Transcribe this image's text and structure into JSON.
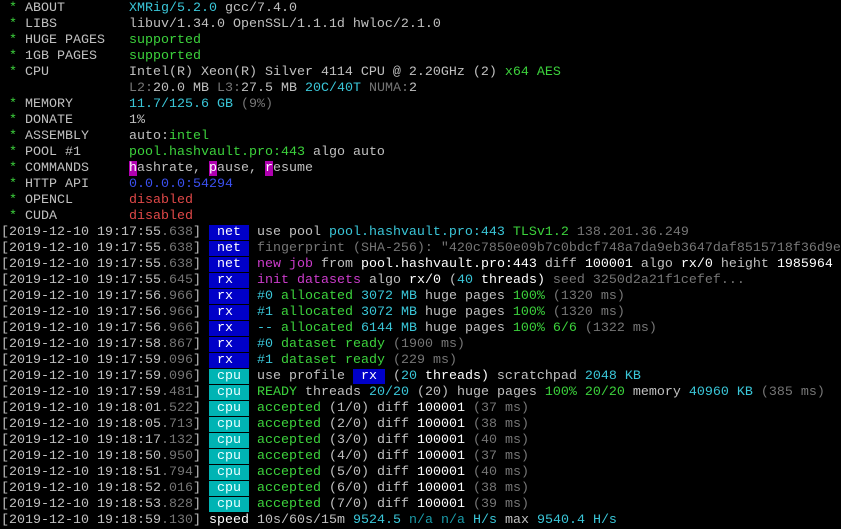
{
  "colors": {
    "white": "#c0c0c0",
    "bright": "#ffffff",
    "dim": "#767676",
    "green": "#3cd23c",
    "cyan": "#3ac6d8",
    "magenta": "#cc3ccc",
    "red": "#e04848",
    "blue": "#3b50f0",
    "tag_net_rx_bg": "#0000c8",
    "tag_cpu_bg": "#00b4b4"
  },
  "lines": [
    [
      [
        " * ",
        "g"
      ],
      [
        "ABOUT        ",
        "w"
      ],
      [
        "XMRig/5.2.0",
        "c"
      ],
      [
        " gcc/7.4.0",
        "w"
      ]
    ],
    [
      [
        " * ",
        "g"
      ],
      [
        "LIBS         ",
        "w"
      ],
      [
        "libuv/1.34.0 OpenSSL/1.1.1d hwloc/2.1.0",
        "w"
      ]
    ],
    [
      [
        " * ",
        "g"
      ],
      [
        "HUGE PAGES   ",
        "w"
      ],
      [
        "supported",
        "g"
      ]
    ],
    [
      [
        " * ",
        "g"
      ],
      [
        "1GB PAGES    ",
        "w"
      ],
      [
        "supported",
        "g"
      ]
    ],
    [
      [
        " * ",
        "g"
      ],
      [
        "CPU          ",
        "w"
      ],
      [
        "Intel(R) Xeon(R) Silver 4114 CPU @ 2.20GHz (2)",
        "w"
      ],
      [
        " x64 AES",
        "g"
      ]
    ],
    [
      [
        "                ",
        "w"
      ],
      [
        "L2:",
        "d"
      ],
      [
        "20.0 MB",
        "w"
      ],
      [
        " L3:",
        "d"
      ],
      [
        "27.5 MB",
        "w"
      ],
      [
        " 20C/40T",
        "c"
      ],
      [
        " NUMA:",
        "d"
      ],
      [
        "2",
        "w"
      ]
    ],
    [
      [
        " * ",
        "g"
      ],
      [
        "MEMORY       ",
        "w"
      ],
      [
        "11.7/125.6 GB",
        "c"
      ],
      [
        " (9%)",
        "d"
      ]
    ],
    [
      [
        " * ",
        "g"
      ],
      [
        "DONATE       ",
        "w"
      ],
      [
        "1%",
        "w"
      ]
    ],
    [
      [
        " * ",
        "g"
      ],
      [
        "ASSEMBLY     ",
        "w"
      ],
      [
        "auto:",
        "w"
      ],
      [
        "intel",
        "g"
      ]
    ],
    [
      [
        " * ",
        "g"
      ],
      [
        "POOL #1      ",
        "w"
      ],
      [
        "pool.hashvault.pro:443",
        "g"
      ],
      [
        " algo auto",
        "w"
      ]
    ],
    [
      [
        " * ",
        "g"
      ],
      [
        "COMMANDS     ",
        "w"
      ],
      [
        "h",
        "mb"
      ],
      [
        "ashrate, ",
        "w"
      ],
      [
        "p",
        "mb"
      ],
      [
        "ause, ",
        "w"
      ],
      [
        "r",
        "mb"
      ],
      [
        "esume",
        "w"
      ]
    ],
    [
      [
        " * ",
        "g"
      ],
      [
        "HTTP API     ",
        "w"
      ],
      [
        "0.0.0.0:54294",
        "bl"
      ]
    ],
    [
      [
        " * ",
        "g"
      ],
      [
        "OPENCL       ",
        "w"
      ],
      [
        "disabled",
        "r"
      ]
    ],
    [
      [
        " * ",
        "g"
      ],
      [
        "CUDA         ",
        "w"
      ],
      [
        "disabled",
        "r"
      ]
    ],
    [
      [
        "[2019-12-10 19:17:55",
        "w"
      ],
      [
        ".638",
        "d"
      ],
      [
        "] ",
        "w"
      ],
      [
        " net ",
        "tb"
      ],
      [
        " use pool ",
        "w"
      ],
      [
        "pool.hashvault.pro:443",
        "c"
      ],
      [
        " TLSv1.2",
        "g"
      ],
      [
        " 138.201.36.249",
        "d"
      ]
    ],
    [
      [
        "[2019-12-10 19:17:55",
        "w"
      ],
      [
        ".638",
        "d"
      ],
      [
        "] ",
        "w"
      ],
      [
        " net ",
        "tb"
      ],
      [
        " fingerprint (SHA-256): \"420c7850e09b7c0bdcf748a7da9eb3647daf8515718f36d9e",
        "d"
      ]
    ],
    [
      [
        "[2019-12-10 19:17:55",
        "w"
      ],
      [
        ".638",
        "d"
      ],
      [
        "] ",
        "w"
      ],
      [
        " net ",
        "tb"
      ],
      [
        " ",
        "w"
      ],
      [
        "new job",
        "m"
      ],
      [
        " from ",
        "w"
      ],
      [
        "pool.hashvault.pro:443",
        "b"
      ],
      [
        " diff ",
        "w"
      ],
      [
        "100001",
        "b"
      ],
      [
        " algo ",
        "w"
      ],
      [
        "rx/0",
        "b"
      ],
      [
        " height ",
        "w"
      ],
      [
        "1985964",
        "b"
      ]
    ],
    [
      [
        "[2019-12-10 19:17:55",
        "w"
      ],
      [
        ".645",
        "d"
      ],
      [
        "] ",
        "w"
      ],
      [
        " rx  ",
        "tb"
      ],
      [
        " ",
        "w"
      ],
      [
        "init datasets",
        "m"
      ],
      [
        " algo ",
        "w"
      ],
      [
        "rx/0",
        "b"
      ],
      [
        " (",
        "w"
      ],
      [
        "40",
        "c"
      ],
      [
        " threads)",
        "b"
      ],
      [
        " seed 3250d2a21f1cefef...",
        "d"
      ]
    ],
    [
      [
        "[2019-12-10 19:17:56",
        "w"
      ],
      [
        ".966",
        "d"
      ],
      [
        "] ",
        "w"
      ],
      [
        " rx  ",
        "tb"
      ],
      [
        " ",
        "w"
      ],
      [
        "#0",
        "c"
      ],
      [
        " allocated",
        "g"
      ],
      [
        " 3072 MB",
        "c"
      ],
      [
        " huge pages",
        "w"
      ],
      [
        " 100%",
        "g"
      ],
      [
        " (1320 ms)",
        "d"
      ]
    ],
    [
      [
        "[2019-12-10 19:17:56",
        "w"
      ],
      [
        ".966",
        "d"
      ],
      [
        "] ",
        "w"
      ],
      [
        " rx  ",
        "tb"
      ],
      [
        " ",
        "w"
      ],
      [
        "#1",
        "c"
      ],
      [
        " allocated",
        "g"
      ],
      [
        " 3072 MB",
        "c"
      ],
      [
        " huge pages",
        "w"
      ],
      [
        " 100%",
        "g"
      ],
      [
        " (1320 ms)",
        "d"
      ]
    ],
    [
      [
        "[2019-12-10 19:17:56",
        "w"
      ],
      [
        ".966",
        "d"
      ],
      [
        "] ",
        "w"
      ],
      [
        " rx  ",
        "tb"
      ],
      [
        " ",
        "w"
      ],
      [
        "--",
        "c"
      ],
      [
        " allocated",
        "g"
      ],
      [
        " 6144 MB",
        "c"
      ],
      [
        " huge pages",
        "w"
      ],
      [
        " 100% 6/6",
        "g"
      ],
      [
        " (1322 ms)",
        "d"
      ]
    ],
    [
      [
        "[2019-12-10 19:17:58",
        "w"
      ],
      [
        ".867",
        "d"
      ],
      [
        "] ",
        "w"
      ],
      [
        " rx  ",
        "tb"
      ],
      [
        " ",
        "w"
      ],
      [
        "#0",
        "c"
      ],
      [
        " dataset ready",
        "g"
      ],
      [
        " (1900 ms)",
        "d"
      ]
    ],
    [
      [
        "[2019-12-10 19:17:59",
        "w"
      ],
      [
        ".096",
        "d"
      ],
      [
        "] ",
        "w"
      ],
      [
        " rx  ",
        "tb"
      ],
      [
        " ",
        "w"
      ],
      [
        "#1",
        "c"
      ],
      [
        " dataset ready",
        "g"
      ],
      [
        " (229 ms)",
        "d"
      ]
    ],
    [
      [
        "[2019-12-10 19:17:59",
        "w"
      ],
      [
        ".096",
        "d"
      ],
      [
        "] ",
        "w"
      ],
      [
        " cpu ",
        "tc"
      ],
      [
        " use profile ",
        "w"
      ],
      [
        " rx ",
        "tb"
      ],
      [
        " (",
        "w"
      ],
      [
        "20",
        "c"
      ],
      [
        " threads)",
        "b"
      ],
      [
        " scratchpad ",
        "w"
      ],
      [
        "2048 KB",
        "c"
      ]
    ],
    [
      [
        "[2019-12-10 19:17:59",
        "w"
      ],
      [
        ".481",
        "d"
      ],
      [
        "] ",
        "w"
      ],
      [
        " cpu ",
        "tc"
      ],
      [
        " ",
        "w"
      ],
      [
        "READY",
        "g"
      ],
      [
        " threads ",
        "w"
      ],
      [
        "20/20",
        "c"
      ],
      [
        " (20)",
        "w"
      ],
      [
        " huge pages",
        "w"
      ],
      [
        " 100% 20/20",
        "g"
      ],
      [
        " memory ",
        "w"
      ],
      [
        "40960 KB",
        "c"
      ],
      [
        " (385 ms)",
        "d"
      ]
    ],
    [
      [
        "[2019-12-10 19:18:01",
        "w"
      ],
      [
        ".522",
        "d"
      ],
      [
        "] ",
        "w"
      ],
      [
        " cpu ",
        "tc"
      ],
      [
        " ",
        "w"
      ],
      [
        "accepted",
        "g"
      ],
      [
        " (1/0) diff ",
        "w"
      ],
      [
        "100001",
        "b"
      ],
      [
        " (37 ms)",
        "d"
      ]
    ],
    [
      [
        "[2019-12-10 19:18:05",
        "w"
      ],
      [
        ".713",
        "d"
      ],
      [
        "] ",
        "w"
      ],
      [
        " cpu ",
        "tc"
      ],
      [
        " ",
        "w"
      ],
      [
        "accepted",
        "g"
      ],
      [
        " (2/0) diff ",
        "w"
      ],
      [
        "100001",
        "b"
      ],
      [
        " (38 ms)",
        "d"
      ]
    ],
    [
      [
        "[2019-12-10 19:18:17",
        "w"
      ],
      [
        ".132",
        "d"
      ],
      [
        "] ",
        "w"
      ],
      [
        " cpu ",
        "tc"
      ],
      [
        " ",
        "w"
      ],
      [
        "accepted",
        "g"
      ],
      [
        " (3/0) diff ",
        "w"
      ],
      [
        "100001",
        "b"
      ],
      [
        " (40 ms)",
        "d"
      ]
    ],
    [
      [
        "[2019-12-10 19:18:50",
        "w"
      ],
      [
        ".950",
        "d"
      ],
      [
        "] ",
        "w"
      ],
      [
        " cpu ",
        "tc"
      ],
      [
        " ",
        "w"
      ],
      [
        "accepted",
        "g"
      ],
      [
        " (4/0) diff ",
        "w"
      ],
      [
        "100001",
        "b"
      ],
      [
        " (37 ms)",
        "d"
      ]
    ],
    [
      [
        "[2019-12-10 19:18:51",
        "w"
      ],
      [
        ".794",
        "d"
      ],
      [
        "] ",
        "w"
      ],
      [
        " cpu ",
        "tc"
      ],
      [
        " ",
        "w"
      ],
      [
        "accepted",
        "g"
      ],
      [
        " (5/0) diff ",
        "w"
      ],
      [
        "100001",
        "b"
      ],
      [
        " (40 ms)",
        "d"
      ]
    ],
    [
      [
        "[2019-12-10 19:18:52",
        "w"
      ],
      [
        ".016",
        "d"
      ],
      [
        "] ",
        "w"
      ],
      [
        " cpu ",
        "tc"
      ],
      [
        " ",
        "w"
      ],
      [
        "accepted",
        "g"
      ],
      [
        " (6/0) diff ",
        "w"
      ],
      [
        "100001",
        "b"
      ],
      [
        " (38 ms)",
        "d"
      ]
    ],
    [
      [
        "[2019-12-10 19:18:53",
        "w"
      ],
      [
        ".828",
        "d"
      ],
      [
        "] ",
        "w"
      ],
      [
        " cpu ",
        "tc"
      ],
      [
        " ",
        "w"
      ],
      [
        "accepted",
        "g"
      ],
      [
        " (7/0) diff ",
        "w"
      ],
      [
        "100001",
        "b"
      ],
      [
        " (39 ms)",
        "d"
      ]
    ],
    [
      [
        "[2019-12-10 19:18:59",
        "w"
      ],
      [
        ".130",
        "d"
      ],
      [
        "] ",
        "w"
      ],
      [
        "speed",
        "b"
      ],
      [
        " 10s/60s/15m ",
        "w"
      ],
      [
        "9524.5",
        "c"
      ],
      [
        " n/a n/a",
        "t"
      ],
      [
        " H/s",
        "c"
      ],
      [
        " max ",
        "w"
      ],
      [
        "9540.4 H/s",
        "c"
      ]
    ]
  ]
}
